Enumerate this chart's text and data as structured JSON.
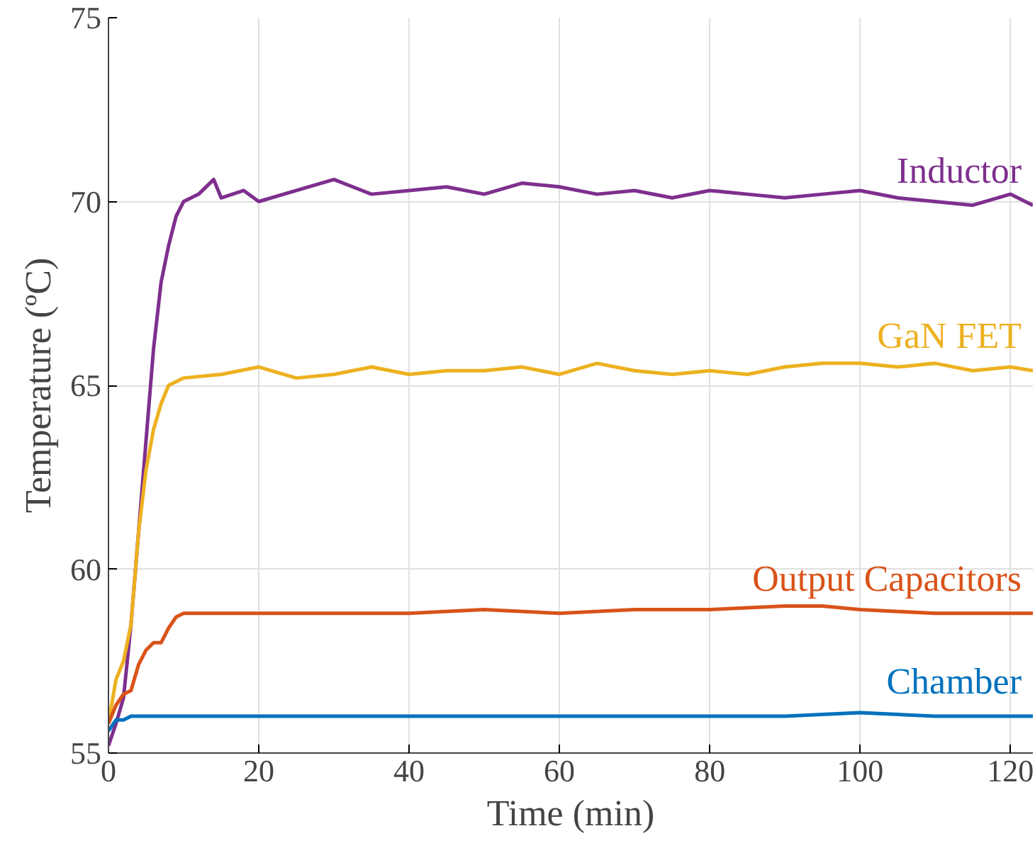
{
  "chart_data": {
    "type": "line",
    "xlabel": "Time (min)",
    "ylabel": "Temperature (ºC)",
    "xlim": [
      0,
      123
    ],
    "ylim": [
      55,
      75
    ],
    "xticks": [
      0,
      20,
      40,
      60,
      80,
      100,
      120
    ],
    "yticks": [
      55,
      60,
      65,
      70,
      75
    ],
    "grid": true,
    "marker": "none",
    "line_style": "solid",
    "series": [
      {
        "name": "Inductor",
        "color": "#7e2f8e",
        "x": [
          0,
          1,
          2,
          3,
          4,
          5,
          6,
          7,
          8,
          9,
          10,
          12,
          14,
          15,
          18,
          20,
          25,
          30,
          35,
          40,
          45,
          50,
          55,
          60,
          65,
          70,
          75,
          80,
          85,
          90,
          95,
          100,
          105,
          110,
          115,
          120,
          123
        ],
        "values": [
          55.2,
          55.8,
          56.5,
          58.5,
          61,
          63.5,
          66,
          67.8,
          68.8,
          69.6,
          70.0,
          70.2,
          70.6,
          70.1,
          70.3,
          70.0,
          70.3,
          70.6,
          70.2,
          70.3,
          70.4,
          70.2,
          70.5,
          70.4,
          70.2,
          70.3,
          70.1,
          70.3,
          70.2,
          70.1,
          70.2,
          70.3,
          70.1,
          70.0,
          69.9,
          70.2,
          69.9
        ]
      },
      {
        "name": "GaN FET",
        "color": "#edb120",
        "x": [
          0,
          1,
          2,
          3,
          4,
          5,
          6,
          7,
          8,
          10,
          15,
          20,
          25,
          30,
          35,
          40,
          45,
          50,
          55,
          60,
          65,
          70,
          75,
          80,
          85,
          90,
          95,
          100,
          105,
          110,
          115,
          120,
          123
        ],
        "values": [
          55.8,
          57,
          57.5,
          58.5,
          61,
          62.7,
          63.8,
          64.5,
          65,
          65.2,
          65.3,
          65.5,
          65.2,
          65.3,
          65.5,
          65.3,
          65.4,
          65.4,
          65.5,
          65.3,
          65.6,
          65.4,
          65.3,
          65.4,
          65.3,
          65.5,
          65.6,
          65.6,
          65.5,
          65.6,
          65.4,
          65.5,
          65.4
        ]
      },
      {
        "name": "Output Capacitors",
        "color": "#d95319",
        "x": [
          0,
          1,
          2,
          3,
          4,
          5,
          6,
          7,
          8,
          9,
          10,
          20,
          30,
          40,
          50,
          60,
          70,
          80,
          90,
          95,
          100,
          110,
          120,
          123
        ],
        "values": [
          55.8,
          56.3,
          56.6,
          56.7,
          57.4,
          57.8,
          58.0,
          58.0,
          58.4,
          58.7,
          58.8,
          58.8,
          58.8,
          58.8,
          58.9,
          58.8,
          58.9,
          58.9,
          59.0,
          59.0,
          58.9,
          58.8,
          58.8,
          58.8
        ]
      },
      {
        "name": "Chamber",
        "color": "#0072bd",
        "x": [
          0,
          1,
          2,
          3,
          10,
          20,
          30,
          40,
          50,
          60,
          70,
          80,
          90,
          100,
          110,
          120,
          123
        ],
        "values": [
          55.6,
          55.9,
          55.9,
          56.0,
          56.0,
          56.0,
          56.0,
          56.0,
          56.0,
          56.0,
          56.0,
          56.0,
          56.0,
          56.1,
          56.0,
          56.0,
          56.0
        ]
      }
    ]
  }
}
